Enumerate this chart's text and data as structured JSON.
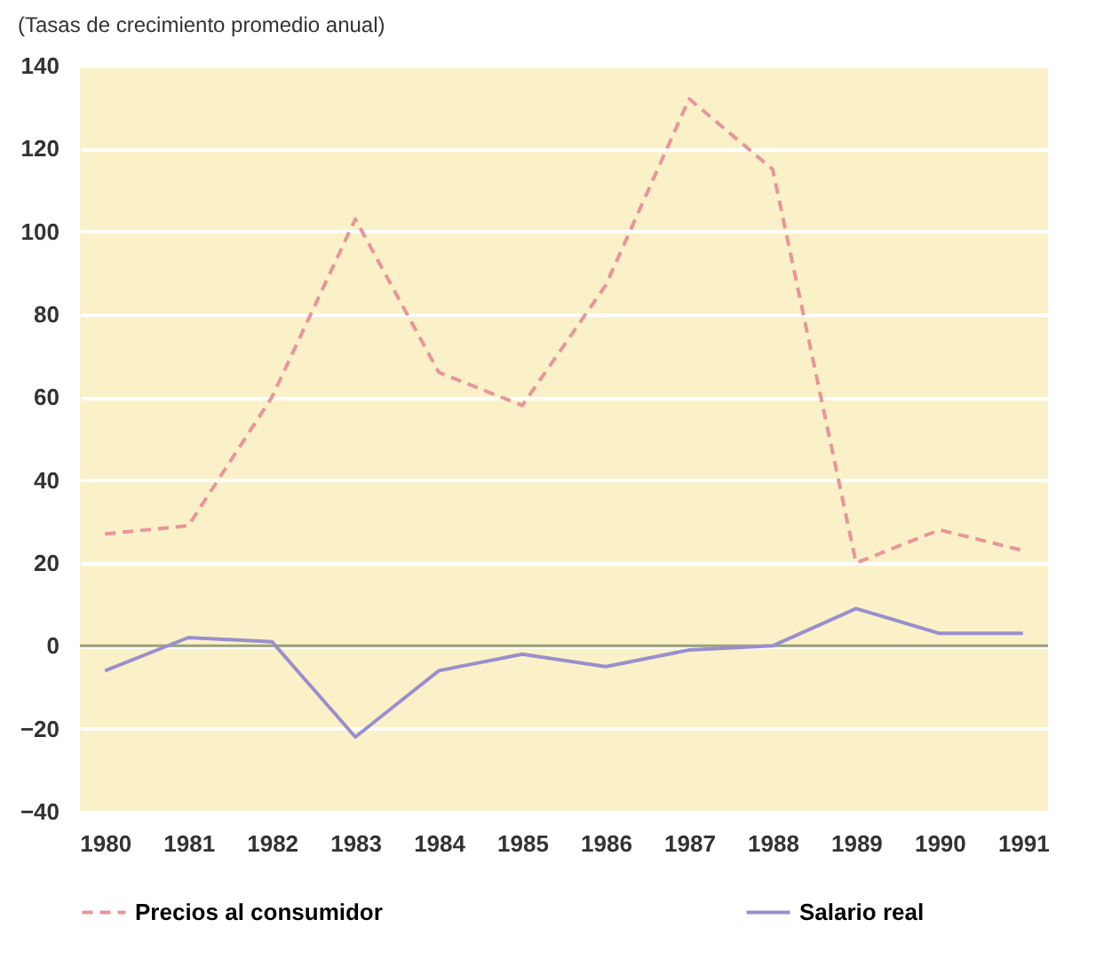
{
  "chart_data": {
    "type": "line",
    "title": "(Tasas de crecimiento promedio anual)",
    "categories": [
      "1980",
      "1981",
      "1982",
      "1983",
      "1984",
      "1985",
      "1986",
      "1987",
      "1988",
      "1989",
      "1990",
      "1991"
    ],
    "series": [
      {
        "name": "Precios al consumidor",
        "color": "#e8959a",
        "line_style": "dashed",
        "values": [
          27,
          29,
          60,
          103,
          66,
          58,
          87,
          132,
          115,
          20,
          28,
          23
        ]
      },
      {
        "name": "Salario real",
        "color": "#9a8fcc",
        "line_style": "solid",
        "values": [
          -6,
          2,
          1,
          -22,
          -6,
          -2,
          -5,
          -1,
          0,
          9,
          3,
          3
        ]
      }
    ],
    "ylim": [
      -40,
      140
    ],
    "yticks": [
      -40,
      -20,
      0,
      20,
      40,
      60,
      80,
      100,
      120,
      140
    ],
    "grid": "y",
    "legend": "bottom",
    "marker": "none",
    "ref_lines": [
      {
        "axis": "y",
        "value": 0,
        "color": "#9aa07a"
      }
    ]
  }
}
